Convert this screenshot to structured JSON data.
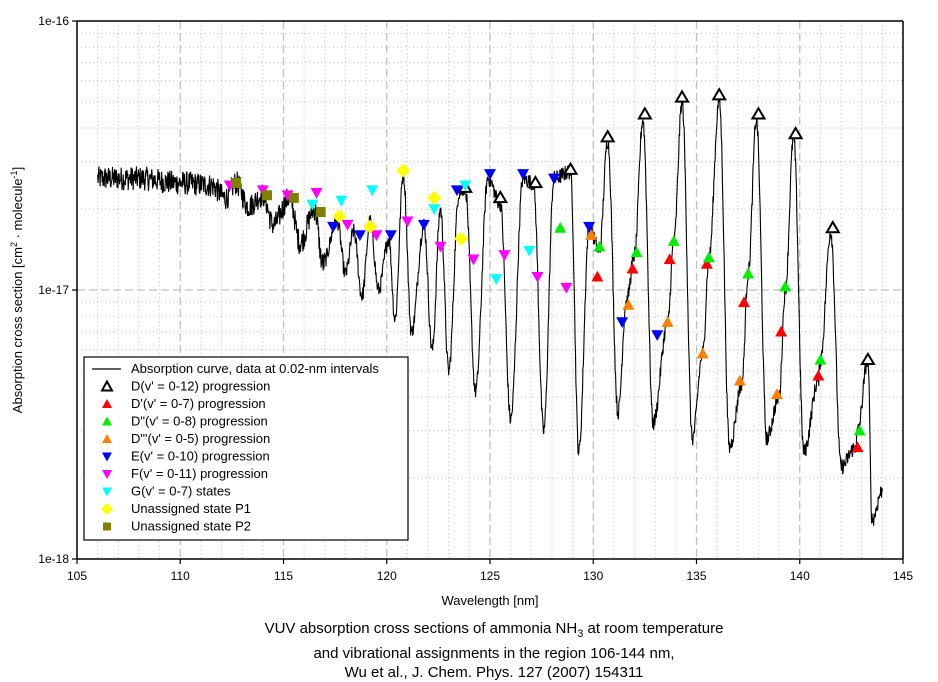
{
  "chart_data": {
    "type": "line",
    "title": "",
    "xlabel": "Wavelength [nm]",
    "ylabel": "Absorption cross section [cm² · molecule⁻¹]",
    "ylabel_parts": {
      "base": "Absorption cross section [cm",
      "sup1": "2",
      "mid": " · molecule",
      "sup2": "-1",
      "end": "]"
    },
    "xlim": [
      105,
      145
    ],
    "ylim": [
      1e-18,
      1e-16
    ],
    "yscale": "log",
    "grid": true,
    "x_ticks": [
      "105",
      "110",
      "115",
      "120",
      "125",
      "130",
      "135",
      "140",
      "145"
    ],
    "x_tick_values": [
      105,
      110,
      115,
      120,
      125,
      130,
      135,
      140,
      145
    ],
    "y_ticks": [
      "1e-18",
      "1e-17",
      "1e-16"
    ],
    "y_tick_values": [
      1e-18,
      1e-17,
      1e-16
    ],
    "legend_position": "bottom-left",
    "legend": [
      {
        "label": "Absorption curve, data at 0.02-nm intervals",
        "marker": "line",
        "color": "#000000"
      },
      {
        "label": "D(v' = 0-12) progression",
        "marker": "triangle-up-open",
        "color": "#000000"
      },
      {
        "label": "D'(v' = 0-7) progression",
        "marker": "triangle-up",
        "color": "#ff0000"
      },
      {
        "label": "D\"(v' = 0-8) progression",
        "marker": "triangle-up",
        "color": "#00ee00"
      },
      {
        "label": "D\"'(v' = 0-5) progression",
        "marker": "triangle-up",
        "color": "#ff8000"
      },
      {
        "label": "E(v' = 0-10) progression",
        "marker": "triangle-down",
        "color": "#0000ff"
      },
      {
        "label": "F(v' = 0-11) progression",
        "marker": "triangle-down",
        "color": "#ff00ff"
      },
      {
        "label": "G(v' = 0-7) states",
        "marker": "triangle-down",
        "color": "#00ffff"
      },
      {
        "label": "Unassigned state P1",
        "marker": "diamond",
        "color": "#ffff00"
      },
      {
        "label": "Unassigned state P2",
        "marker": "square",
        "color": "#808000"
      }
    ],
    "curve": {
      "name": "Absorption curve",
      "x_start": 106.0,
      "x_end": 144.0,
      "step": 0.02,
      "keypoints": [
        [
          106.0,
          2.6e-17
        ],
        [
          108.0,
          2.6e-17
        ],
        [
          110.0,
          2.5e-17
        ],
        [
          111.5,
          2.45e-17
        ],
        [
          112.2,
          2.2e-17
        ],
        [
          112.7,
          2.5e-17
        ],
        [
          113.3,
          2.05e-17
        ],
        [
          114.0,
          2.25e-17
        ],
        [
          114.5,
          1.75e-17
        ],
        [
          115.3,
          2.2e-17
        ],
        [
          115.8,
          1.5e-17
        ],
        [
          116.5,
          2e-17
        ],
        [
          116.9,
          1.25e-17
        ],
        [
          117.6,
          1.8e-17
        ],
        [
          118.0,
          1.15e-17
        ],
        [
          118.4,
          1.65e-17
        ],
        [
          118.8,
          9.5e-18
        ],
        [
          119.2,
          1.8e-17
        ],
        [
          119.6,
          1e-17
        ],
        [
          120.1,
          1.55e-17
        ],
        [
          120.4,
          7.8e-18
        ],
        [
          120.8,
          2.7e-17
        ],
        [
          121.2,
          7e-18
        ],
        [
          121.8,
          1.75e-17
        ],
        [
          122.2,
          6e-18
        ],
        [
          122.6,
          2e-17
        ],
        [
          123.0,
          5e-18
        ],
        [
          123.5,
          2.3e-17
        ],
        [
          123.8,
          2.4e-17
        ],
        [
          124.3,
          4.2e-18
        ],
        [
          124.9,
          2.6e-17
        ],
        [
          125.5,
          2.1e-17
        ],
        [
          126.0,
          3.3e-18
        ],
        [
          126.6,
          2.6e-17
        ],
        [
          127.1,
          2.5e-17
        ],
        [
          127.6,
          3e-18
        ],
        [
          128.1,
          2.6e-17
        ],
        [
          128.9,
          2.75e-17
        ],
        [
          129.3,
          2.5e-18
        ],
        [
          129.8,
          1.7e-17
        ],
        [
          130.3,
          1.4e-17
        ],
        [
          130.7,
          3.6e-17
        ],
        [
          131.2,
          3.5e-18
        ],
        [
          131.6,
          9e-18
        ],
        [
          132.0,
          1.35e-17
        ],
        [
          132.4,
          4.3e-17
        ],
        [
          132.9,
          3.2e-18
        ],
        [
          133.6,
          7.5e-18
        ],
        [
          133.9,
          1.5e-17
        ],
        [
          134.3,
          5e-17
        ],
        [
          134.8,
          2.8e-18
        ],
        [
          135.3,
          5.8e-18
        ],
        [
          135.6,
          1.3e-17
        ],
        [
          136.1,
          5.1e-17
        ],
        [
          136.6,
          2.6e-18
        ],
        [
          137.2,
          4.5e-18
        ],
        [
          137.5,
          1.15e-17
        ],
        [
          137.9,
          4.3e-17
        ],
        [
          138.4,
          2.8e-18
        ],
        [
          139.0,
          4e-18
        ],
        [
          139.3,
          1e-17
        ],
        [
          139.7,
          3.7e-17
        ],
        [
          140.2,
          2.5e-18
        ],
        [
          140.9,
          4.6e-18
        ],
        [
          141.0,
          5.5e-18
        ],
        [
          141.5,
          1.65e-17
        ],
        [
          142.0,
          2.2e-18
        ],
        [
          142.7,
          2.6e-18
        ],
        [
          142.8,
          3e-18
        ],
        [
          143.3,
          5.5e-18
        ],
        [
          143.5,
          1.4e-18
        ],
        [
          144.0,
          1.8e-18
        ]
      ]
    },
    "series": [
      {
        "name": "D(v' = 0-12) progression",
        "marker": "triangle-up-open",
        "color": "#000000",
        "points": [
          [
            123.8,
            2.4e-17
          ],
          [
            125.5,
            2.2e-17
          ],
          [
            127.2,
            2.5e-17
          ],
          [
            128.9,
            2.8e-17
          ],
          [
            130.7,
            3.7e-17
          ],
          [
            132.5,
            4.5e-17
          ],
          [
            134.3,
            5.2e-17
          ],
          [
            136.1,
            5.3e-17
          ],
          [
            138.0,
            4.5e-17
          ],
          [
            139.8,
            3.8e-17
          ],
          [
            141.6,
            1.7e-17
          ],
          [
            143.3,
            5.5e-18
          ]
        ]
      },
      {
        "name": "D'(v' = 0-7) progression",
        "marker": "triangle-up",
        "color": "#ff0000",
        "points": [
          [
            130.2,
            1.12e-17
          ],
          [
            131.9,
            1.2e-17
          ],
          [
            133.7,
            1.3e-17
          ],
          [
            135.5,
            1.25e-17
          ],
          [
            137.3,
            9e-18
          ],
          [
            139.1,
            7e-18
          ],
          [
            140.9,
            4.8e-18
          ],
          [
            142.8,
            2.6e-18
          ]
        ]
      },
      {
        "name": "D\"(v' = 0-8) progression",
        "marker": "triangle-up",
        "color": "#00ee00",
        "points": [
          [
            128.4,
            1.7e-17
          ],
          [
            130.3,
            1.45e-17
          ],
          [
            132.1,
            1.38e-17
          ],
          [
            133.9,
            1.52e-17
          ],
          [
            135.6,
            1.32e-17
          ],
          [
            137.5,
            1.15e-17
          ],
          [
            139.3,
            1.03e-17
          ],
          [
            141.0,
            5.5e-18
          ],
          [
            142.9,
            3e-18
          ]
        ]
      },
      {
        "name": "D\"'(v' = 0-5) progression",
        "marker": "triangle-up",
        "color": "#ff8000",
        "points": [
          [
            129.9,
            1.6e-17
          ],
          [
            131.7,
            8.8e-18
          ],
          [
            133.6,
            7.6e-18
          ],
          [
            135.3,
            5.8e-18
          ],
          [
            137.1,
            4.6e-18
          ],
          [
            138.9,
            4.1e-18
          ]
        ]
      },
      {
        "name": "E(v' = 0-10) progression",
        "marker": "triangle-down",
        "color": "#0000ff",
        "points": [
          [
            117.4,
            1.72e-17
          ],
          [
            118.7,
            1.6e-17
          ],
          [
            120.2,
            1.6e-17
          ],
          [
            121.8,
            1.75e-17
          ],
          [
            123.4,
            2.35e-17
          ],
          [
            125.0,
            2.7e-17
          ],
          [
            126.6,
            2.7e-17
          ],
          [
            128.1,
            2.6e-17
          ],
          [
            129.8,
            1.72e-17
          ],
          [
            131.4,
            7.6e-18
          ],
          [
            133.1,
            6.8e-18
          ]
        ]
      },
      {
        "name": "F(v' = 0-11) progression",
        "marker": "triangle-down",
        "color": "#ff00ff",
        "points": [
          [
            112.4,
            2.45e-17
          ],
          [
            114.0,
            2.35e-17
          ],
          [
            115.2,
            2.25e-17
          ],
          [
            116.6,
            2.3e-17
          ],
          [
            118.1,
            1.75e-17
          ],
          [
            119.5,
            1.6e-17
          ],
          [
            121.0,
            1.8e-17
          ],
          [
            122.6,
            1.45e-17
          ],
          [
            124.2,
            1.3e-17
          ],
          [
            125.7,
            1.35e-17
          ],
          [
            127.3,
            1.12e-17
          ],
          [
            128.7,
            1.02e-17
          ]
        ]
      },
      {
        "name": "G(v' = 0-7) states",
        "marker": "triangle-down",
        "color": "#00ffff",
        "points": [
          [
            116.4,
            2.08e-17
          ],
          [
            117.8,
            2.15e-17
          ],
          [
            119.3,
            2.35e-17
          ],
          [
            122.3,
            2e-17
          ],
          [
            123.8,
            2.45e-17
          ],
          [
            125.3,
            1.1e-17
          ],
          [
            126.9,
            1.4e-17
          ]
        ]
      },
      {
        "name": "Unassigned state P1",
        "marker": "diamond",
        "color": "#ffff00",
        "points": [
          [
            117.7,
            1.88e-17
          ],
          [
            119.2,
            1.72e-17
          ],
          [
            120.8,
            2.78e-17
          ],
          [
            122.3,
            2.2e-17
          ],
          [
            123.6,
            1.55e-17
          ]
        ]
      },
      {
        "name": "Unassigned state P2",
        "marker": "square",
        "color": "#808000",
        "points": [
          [
            112.7,
            2.5e-17
          ],
          [
            114.2,
            2.25e-17
          ],
          [
            115.5,
            2.2e-17
          ],
          [
            116.8,
            1.95e-17
          ]
        ]
      }
    ]
  },
  "caption": {
    "line1_pre": "VUV absorption cross sections of ammonia NH",
    "line1_sub": "3",
    "line1_post": " at room temperature",
    "line2": "and vibrational assignments in the region 106-144 nm,",
    "line3": "Wu et al., J. Chem. Phys. 127 (2007) 154311"
  }
}
